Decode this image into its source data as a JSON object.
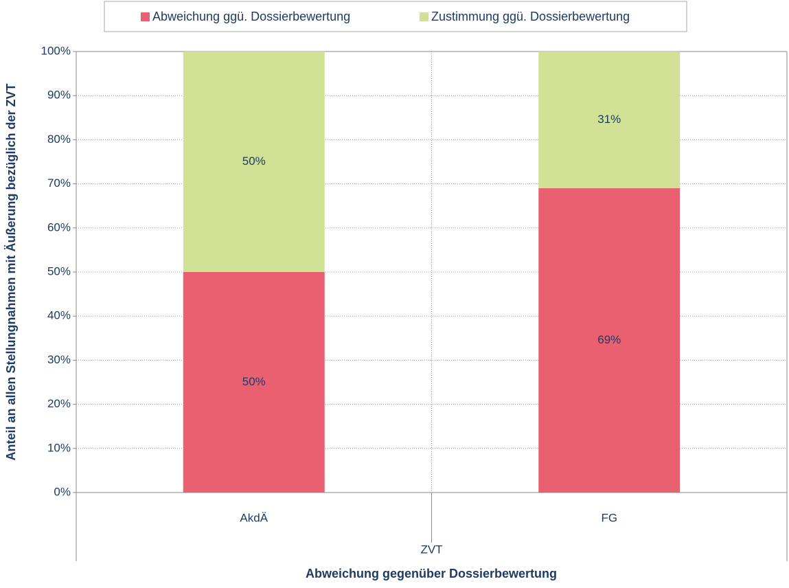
{
  "chart_data": {
    "type": "bar",
    "stacked": true,
    "categories": [
      "AkdÄ",
      "FG"
    ],
    "group_label": "ZVT",
    "x_label": "Abweichung gegenüber Dossierbewertung",
    "y_label": "Anteil an allen Stellungnahmen mit Äußerung bezüglich der ZVT",
    "series": [
      {
        "name": "Abweichung ggü. Dossierbewertung",
        "color": "#e96070",
        "values": [
          50,
          69
        ],
        "value_labels": [
          "50%",
          "69%"
        ]
      },
      {
        "name": "Zustimmung ggü. Dossierbewertung",
        "color": "#d1e196",
        "values": [
          50,
          31
        ],
        "value_labels": [
          "50%",
          "31%"
        ]
      }
    ],
    "ylim": [
      0,
      100
    ],
    "yticks": [
      {
        "value": 0,
        "label": "0%"
      },
      {
        "value": 10,
        "label": "10%"
      },
      {
        "value": 20,
        "label": "20%"
      },
      {
        "value": 30,
        "label": "30%"
      },
      {
        "value": 40,
        "label": "40%"
      },
      {
        "value": 50,
        "label": "50%"
      },
      {
        "value": 60,
        "label": "60%"
      },
      {
        "value": 70,
        "label": "70%"
      },
      {
        "value": 80,
        "label": "80%"
      },
      {
        "value": 90,
        "label": "90%"
      },
      {
        "value": 100,
        "label": "100%"
      }
    ],
    "grid": true,
    "legend": "top"
  }
}
